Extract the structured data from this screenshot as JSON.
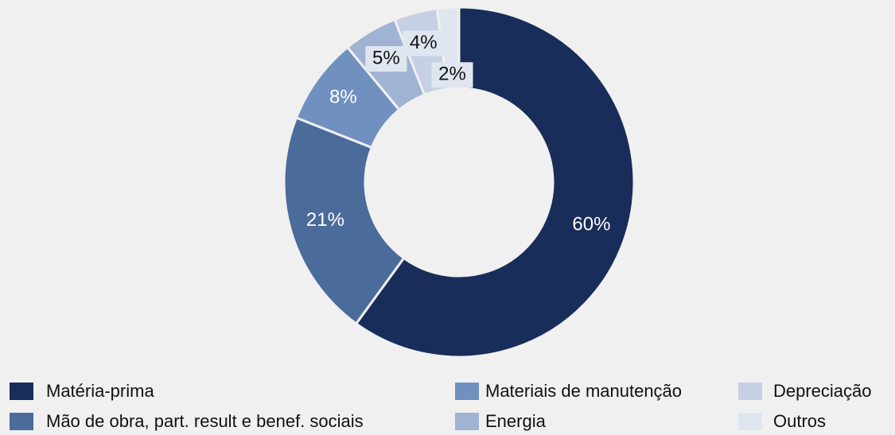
{
  "chart_data": {
    "type": "donut",
    "categories": [
      "Matéria-prima",
      "Mão de obra, part. result e benef. sociais",
      "Materiais de manutenção",
      "Energia",
      "Depreciação",
      "Outros"
    ],
    "values": [
      60,
      21,
      8,
      5,
      4,
      2
    ],
    "value_labels": [
      "60%",
      "21%",
      "8%",
      "5%",
      "4%",
      "2%"
    ],
    "colors": [
      "#182d5a",
      "#4b6b9b",
      "#7090c0",
      "#a0b3d3",
      "#c5d0e4",
      "#dfe6f0"
    ],
    "legend": "bottom"
  }
}
